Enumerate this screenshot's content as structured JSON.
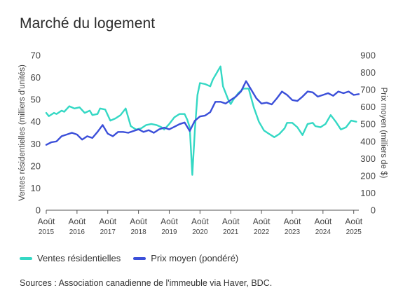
{
  "title": "Marché du logement",
  "legend": {
    "sales": "Ventes résidentielles",
    "price": "Prix moyen (pondéré)"
  },
  "source": "Sources : Association canadienne de l'immeuble via Haver, BDC.",
  "colors": {
    "sales": "#34d8c4",
    "price": "#3b4fd9",
    "axis": "#555555",
    "text": "#444444"
  },
  "chart_data": {
    "type": "line",
    "ylabel_left": "Ventes résidentielles (milliers d'unités)",
    "ylabel_right": "Prix moyen (milliers de $)",
    "ylim_left": [
      0,
      70
    ],
    "ylim_right": [
      0,
      900
    ],
    "yticks_left": [
      "0",
      "10",
      "20",
      "30",
      "40",
      "50",
      "60",
      "70"
    ],
    "yticks_right": [
      "0",
      "100",
      "200",
      "300",
      "400",
      "500",
      "600",
      "700",
      "800",
      "900"
    ],
    "xlim": [
      "2015-08",
      "2025-10"
    ],
    "x_ticks": [
      {
        "month": "Août",
        "year": "2015"
      },
      {
        "month": "Août",
        "year": "2016"
      },
      {
        "month": "Août",
        "year": "2017"
      },
      {
        "month": "Août",
        "year": "2018"
      },
      {
        "month": "Août",
        "year": "2019"
      },
      {
        "month": "Août",
        "year": "2020"
      },
      {
        "month": "Août",
        "year": "2021"
      },
      {
        "month": "Août",
        "year": "2022"
      },
      {
        "month": "Août",
        "year": "2023"
      },
      {
        "month": "Août",
        "year": "2024"
      },
      {
        "month": "Août",
        "year": "2025"
      }
    ],
    "grid": false,
    "legend_position": "bottom-left",
    "series": [
      {
        "name": "Ventes résidentielles",
        "axis": "left",
        "points": [
          [
            "2015-08",
            44
          ],
          [
            "2015-09",
            42.5
          ],
          [
            "2015-11",
            44
          ],
          [
            "2015-12",
            43.5
          ],
          [
            "2016-02",
            45
          ],
          [
            "2016-03",
            44.5
          ],
          [
            "2016-05",
            47
          ],
          [
            "2016-07",
            46
          ],
          [
            "2016-09",
            46.5
          ],
          [
            "2016-11",
            44
          ],
          [
            "2017-01",
            45
          ],
          [
            "2017-02",
            43
          ],
          [
            "2017-04",
            43.5
          ],
          [
            "2017-05",
            46
          ],
          [
            "2017-07",
            45.5
          ],
          [
            "2017-09",
            40.5
          ],
          [
            "2017-11",
            41.5
          ],
          [
            "2018-01",
            43
          ],
          [
            "2018-03",
            46
          ],
          [
            "2018-05",
            38
          ],
          [
            "2018-07",
            36.5
          ],
          [
            "2018-09",
            37
          ],
          [
            "2018-11",
            38.5
          ],
          [
            "2019-01",
            39
          ],
          [
            "2019-03",
            38.5
          ],
          [
            "2019-05",
            37.5
          ],
          [
            "2019-06",
            36.5
          ],
          [
            "2019-08",
            39
          ],
          [
            "2019-10",
            42
          ],
          [
            "2019-12",
            43.5
          ],
          [
            "2020-02",
            43.5
          ],
          [
            "2020-03",
            41
          ],
          [
            "2020-04",
            37.5
          ],
          [
            "2020-05",
            16
          ],
          [
            "2020-06",
            36
          ],
          [
            "2020-07",
            52
          ],
          [
            "2020-08",
            57.5
          ],
          [
            "2020-10",
            57
          ],
          [
            "2020-12",
            56
          ],
          [
            "2021-01",
            59
          ],
          [
            "2021-03",
            63
          ],
          [
            "2021-04",
            65
          ],
          [
            "2021-05",
            56
          ],
          [
            "2021-07",
            50
          ],
          [
            "2021-08",
            48
          ],
          [
            "2021-09",
            50
          ],
          [
            "2021-11",
            53
          ],
          [
            "2022-01",
            55
          ],
          [
            "2022-03",
            55
          ],
          [
            "2022-05",
            46.5
          ],
          [
            "2022-07",
            40
          ],
          [
            "2022-09",
            36
          ],
          [
            "2022-11",
            34.5
          ],
          [
            "2023-01",
            33
          ],
          [
            "2023-03",
            34.5
          ],
          [
            "2023-05",
            37
          ],
          [
            "2023-06",
            39.5
          ],
          [
            "2023-08",
            39.5
          ],
          [
            "2023-10",
            37.5
          ],
          [
            "2023-12",
            34
          ],
          [
            "2024-02",
            39
          ],
          [
            "2024-04",
            39.5
          ],
          [
            "2024-05",
            38
          ],
          [
            "2024-07",
            37.5
          ],
          [
            "2024-09",
            39
          ],
          [
            "2024-11",
            43
          ],
          [
            "2025-01",
            40
          ],
          [
            "2025-03",
            36.5
          ],
          [
            "2025-05",
            37.5
          ],
          [
            "2025-07",
            40.5
          ],
          [
            "2025-09",
            40
          ]
        ]
      },
      {
        "name": "Prix moyen (pondéré)",
        "axis": "right",
        "points": [
          [
            "2015-08",
            380
          ],
          [
            "2015-10",
            395
          ],
          [
            "2015-12",
            400
          ],
          [
            "2016-02",
            430
          ],
          [
            "2016-04",
            440
          ],
          [
            "2016-06",
            450
          ],
          [
            "2016-08",
            440
          ],
          [
            "2016-10",
            410
          ],
          [
            "2016-12",
            430
          ],
          [
            "2017-02",
            420
          ],
          [
            "2017-04",
            455
          ],
          [
            "2017-06",
            495
          ],
          [
            "2017-08",
            445
          ],
          [
            "2017-10",
            430
          ],
          [
            "2017-12",
            455
          ],
          [
            "2018-02",
            455
          ],
          [
            "2018-04",
            450
          ],
          [
            "2018-06",
            460
          ],
          [
            "2018-08",
            470
          ],
          [
            "2018-10",
            455
          ],
          [
            "2018-12",
            465
          ],
          [
            "2019-02",
            450
          ],
          [
            "2019-04",
            470
          ],
          [
            "2019-06",
            480
          ],
          [
            "2019-08",
            470
          ],
          [
            "2019-10",
            485
          ],
          [
            "2019-12",
            500
          ],
          [
            "2020-02",
            510
          ],
          [
            "2020-04",
            460
          ],
          [
            "2020-06",
            520
          ],
          [
            "2020-08",
            545
          ],
          [
            "2020-10",
            550
          ],
          [
            "2020-12",
            570
          ],
          [
            "2021-02",
            630
          ],
          [
            "2021-04",
            630
          ],
          [
            "2021-06",
            620
          ],
          [
            "2021-08",
            640
          ],
          [
            "2021-10",
            660
          ],
          [
            "2021-12",
            690
          ],
          [
            "2022-02",
            750
          ],
          [
            "2022-04",
            700
          ],
          [
            "2022-06",
            650
          ],
          [
            "2022-08",
            620
          ],
          [
            "2022-10",
            625
          ],
          [
            "2022-12",
            615
          ],
          [
            "2023-02",
            650
          ],
          [
            "2023-04",
            690
          ],
          [
            "2023-06",
            670
          ],
          [
            "2023-08",
            640
          ],
          [
            "2023-10",
            635
          ],
          [
            "2023-12",
            660
          ],
          [
            "2024-02",
            690
          ],
          [
            "2024-04",
            685
          ],
          [
            "2024-06",
            660
          ],
          [
            "2024-08",
            670
          ],
          [
            "2024-10",
            680
          ],
          [
            "2024-12",
            665
          ],
          [
            "2025-02",
            690
          ],
          [
            "2025-04",
            680
          ],
          [
            "2025-06",
            690
          ],
          [
            "2025-08",
            670
          ],
          [
            "2025-10",
            675
          ]
        ]
      }
    ]
  }
}
